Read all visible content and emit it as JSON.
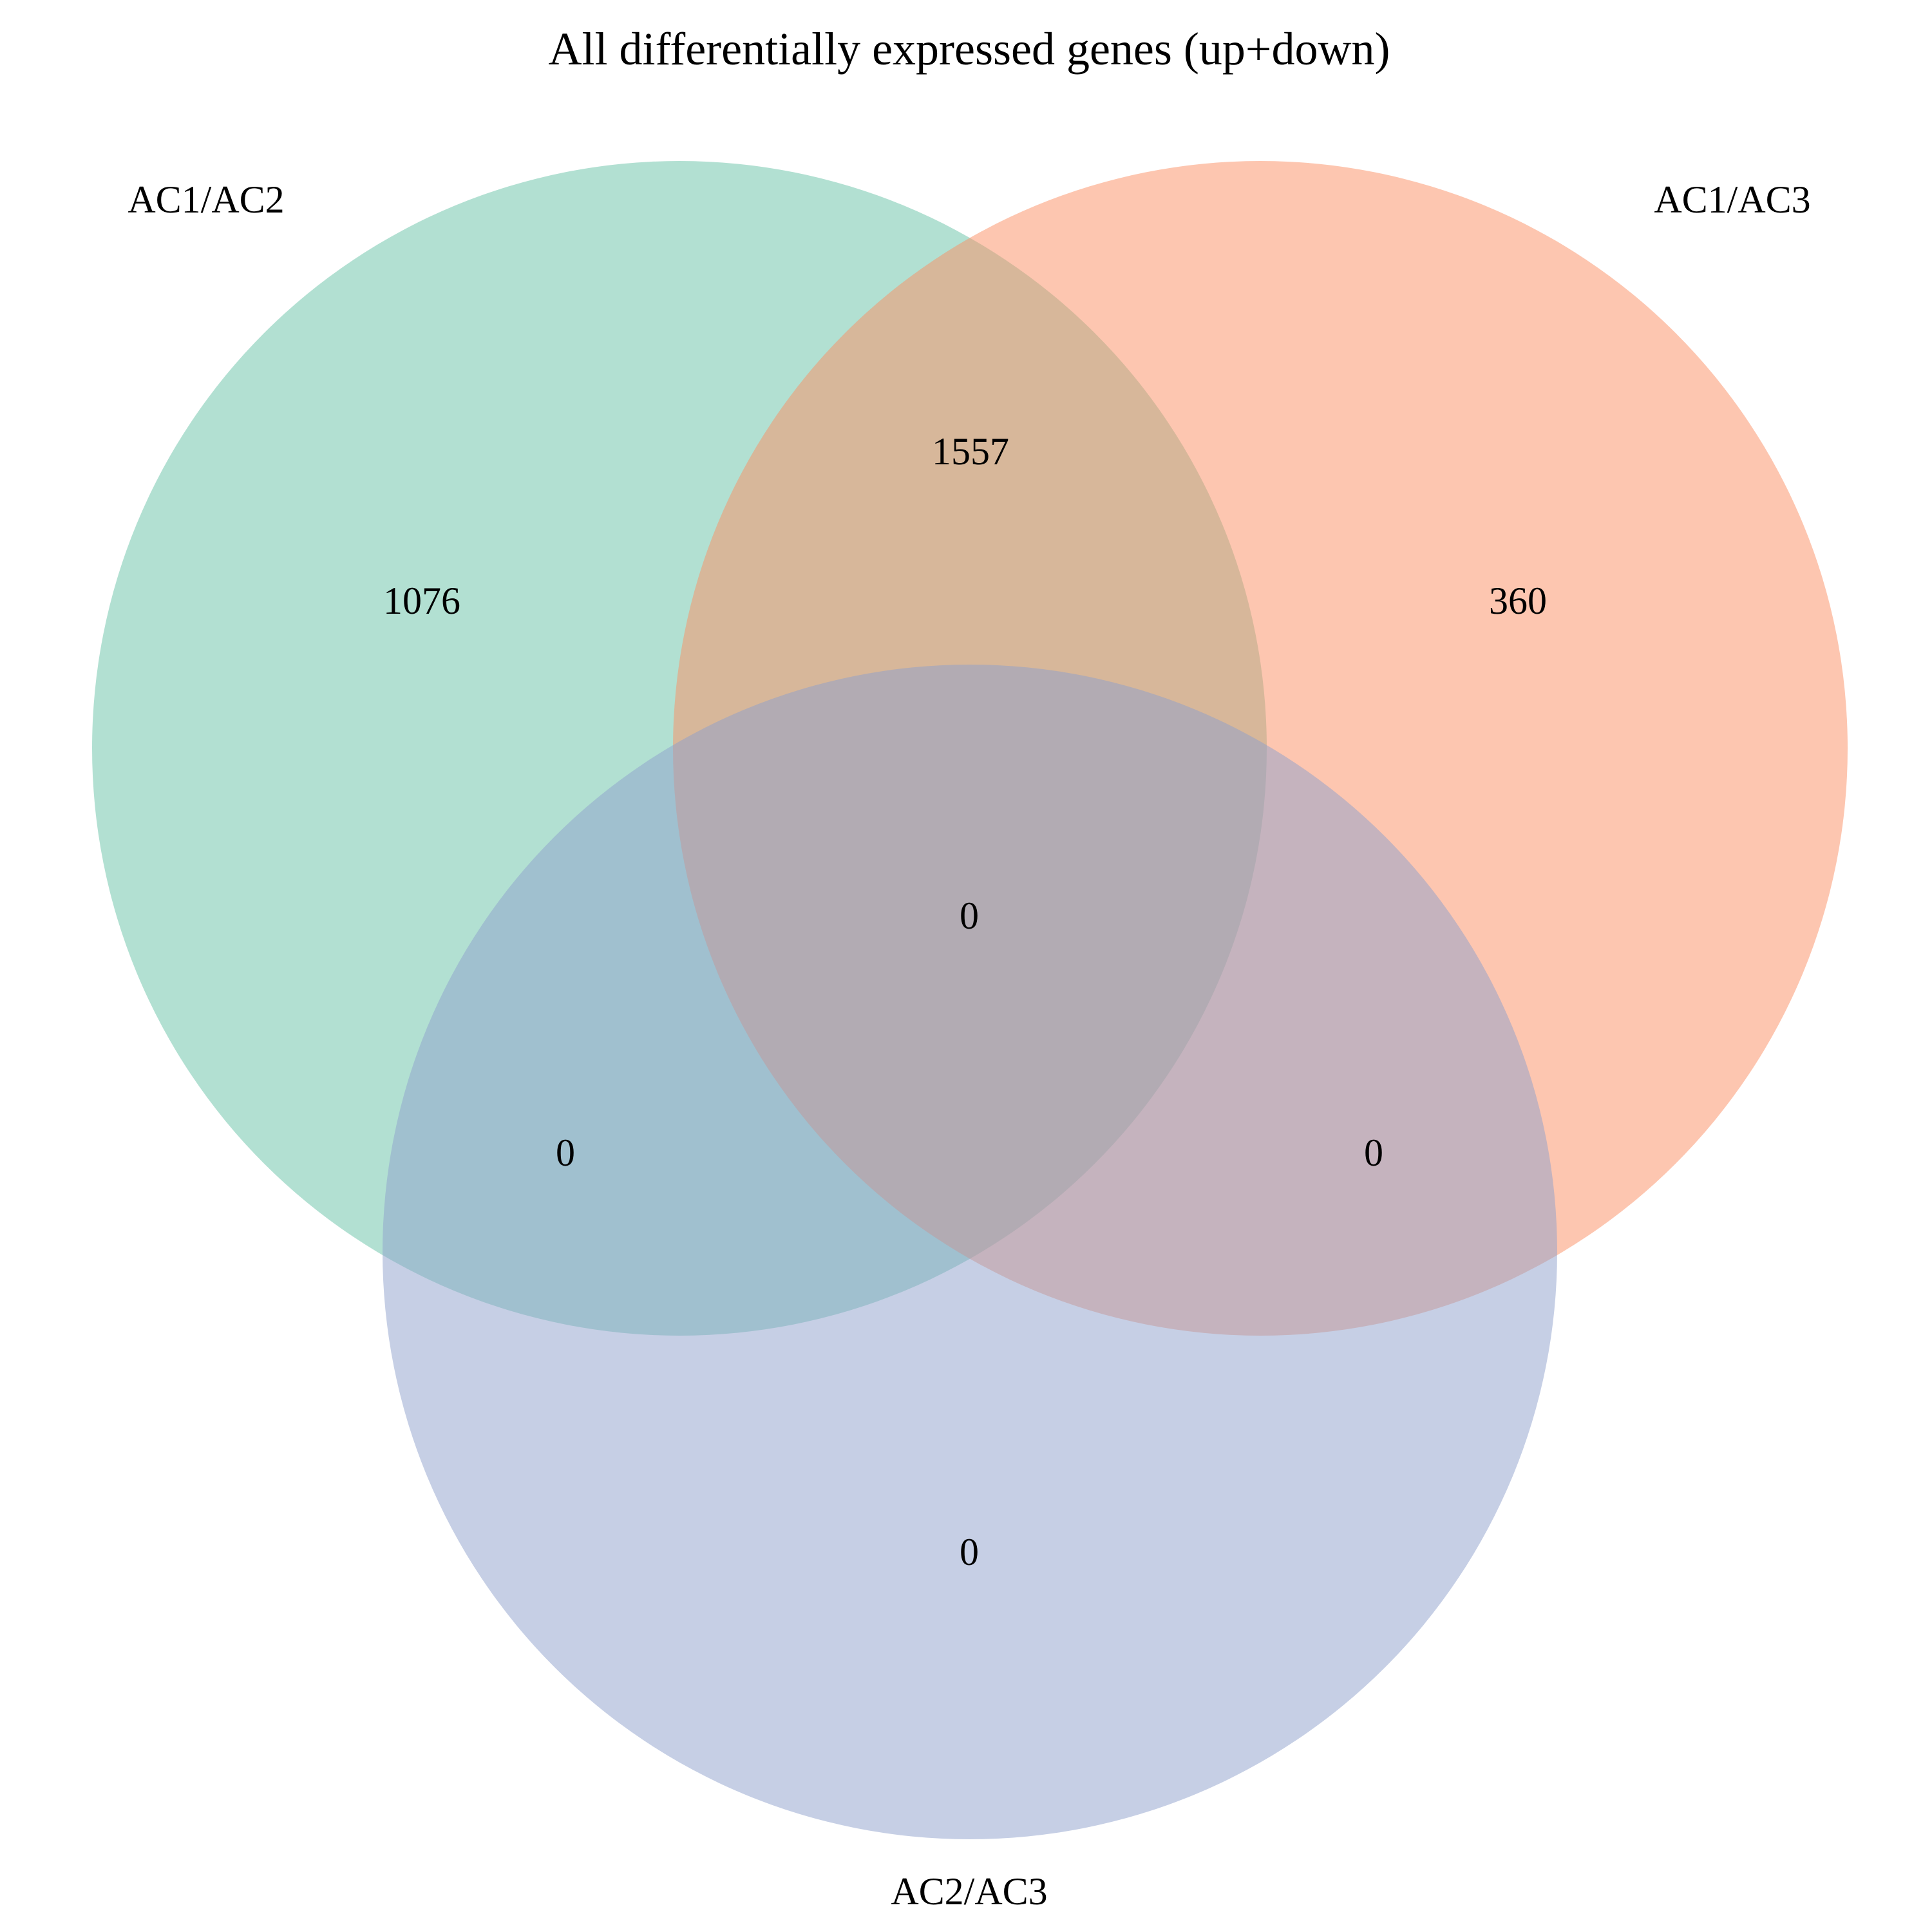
{
  "title": "All differentially expressed genes (up+down)",
  "sets": [
    {
      "name": "AC1/AC2",
      "color": "#66C2A5"
    },
    {
      "name": "AC1/AC3",
      "color": "#FC8D62"
    },
    {
      "name": "AC2/AC3",
      "color": "#8DA0CB"
    }
  ],
  "regions": {
    "only_ac1_ac2": "1076",
    "only_ac1_ac3": "360",
    "only_ac2_ac3": "0",
    "ac1_ac2_and_ac1_ac3": "1557",
    "ac1_ac2_and_ac2_ac3": "0",
    "ac1_ac3_and_ac2_ac3": "0",
    "all_three": "0"
  }
}
